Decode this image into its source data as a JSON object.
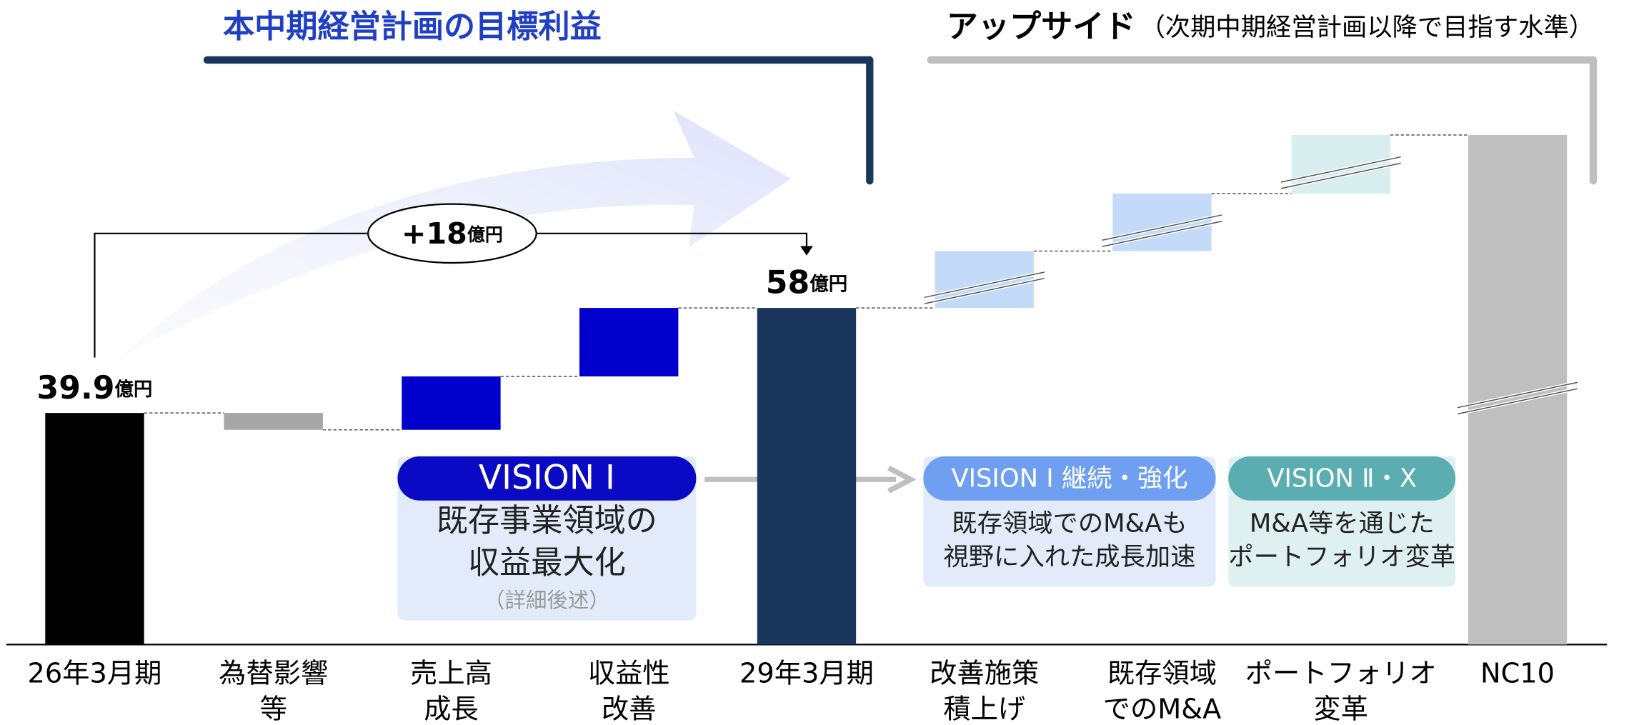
{
  "chart_data": {
    "type": "waterfall",
    "title": "本中期経営計画の目標利益",
    "upside_title": "アップサイド",
    "upside_subtitle": "（次期中期経営計画以降で目指す水準）",
    "unit": "億円",
    "growth_annotation": "+18",
    "categories": [
      [
        "26年3月期"
      ],
      [
        "為替影響",
        "等"
      ],
      [
        "売上高",
        "成長"
      ],
      [
        "収益性",
        "改善"
      ],
      [
        "29年3月期"
      ],
      [
        "改善施策",
        "積上げ"
      ],
      [
        "既存領域",
        "でのM&A"
      ],
      [
        "ポートフォリオ",
        "変革"
      ],
      [
        "NC10"
      ]
    ],
    "values": [
      39.9,
      -2.9,
      9.2,
      11.8,
      58,
      9.8,
      9.9,
      10.1,
      87.8
    ],
    "value_labels": [
      "39.9",
      null,
      null,
      null,
      "58",
      null,
      null,
      null,
      null
    ],
    "totals": [
      true,
      false,
      false,
      false,
      true,
      false,
      false,
      false,
      true
    ],
    "broken": [
      false,
      false,
      false,
      false,
      false,
      true,
      true,
      true,
      true
    ],
    "colors": [
      "#000000",
      "#a6a6a6",
      "#0000cc",
      "#0000cc",
      "#1b365d",
      "#c3dbf8",
      "#c3dbf8",
      "#d9eeee",
      "#bfbfbf"
    ],
    "ylim": [
      0,
      100
    ],
    "visions": [
      {
        "title": "VISION Ⅰ",
        "lines": [
          "既存事業領域の",
          "収益最大化"
        ],
        "note": "（詳細後述）"
      },
      {
        "title": "VISION Ⅰ 継続・強化",
        "lines": [
          "既存領域でのM&Aも",
          "視野に入れた成長加速"
        ]
      },
      {
        "title": "VISION Ⅱ・Ⅹ",
        "lines": [
          "M&A等を通じた",
          "ポートフォリオ変革"
        ]
      }
    ]
  }
}
